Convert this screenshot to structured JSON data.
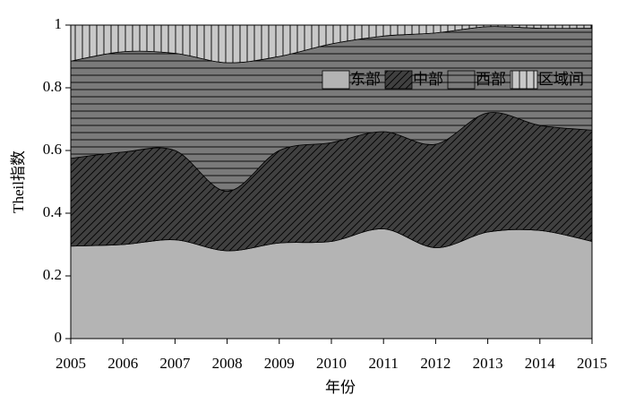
{
  "chart_data": {
    "type": "stacked-area",
    "xlabel": "年份",
    "ylabel": "Theil指数",
    "x": [
      2005,
      2006,
      2007,
      2008,
      2009,
      2010,
      2011,
      2012,
      2013,
      2014,
      2015
    ],
    "xlim": [
      2005,
      2015
    ],
    "xticks": [
      2005,
      2006,
      2007,
      2008,
      2009,
      2010,
      2011,
      2012,
      2013,
      2014,
      2015
    ],
    "ylim": [
      0,
      1
    ],
    "yticks": [
      0,
      0.2,
      0.4,
      0.6,
      0.8,
      1
    ],
    "legend": "upper right",
    "series": [
      {
        "name": "东部",
        "color": "#b4b4b4",
        "hatch": null,
        "values": [
          0.295,
          0.3,
          0.315,
          0.28,
          0.305,
          0.31,
          0.35,
          0.29,
          0.34,
          0.345,
          0.31
        ]
      },
      {
        "name": "中部",
        "color": "#404040",
        "hatch": "/",
        "values": [
          0.28,
          0.295,
          0.285,
          0.19,
          0.295,
          0.315,
          0.31,
          0.33,
          0.38,
          0.335,
          0.355
        ]
      },
      {
        "name": "西部",
        "color": "#7a7a7a",
        "hatch": "-",
        "values": [
          0.31,
          0.32,
          0.31,
          0.41,
          0.3,
          0.315,
          0.305,
          0.355,
          0.275,
          0.31,
          0.325
        ]
      },
      {
        "name": "区域间",
        "color": "#c8c8c8",
        "hatch": "|",
        "values": [
          0.115,
          0.085,
          0.09,
          0.12,
          0.1,
          0.06,
          0.035,
          0.025,
          0.005,
          0.01,
          0.01
        ]
      }
    ]
  }
}
